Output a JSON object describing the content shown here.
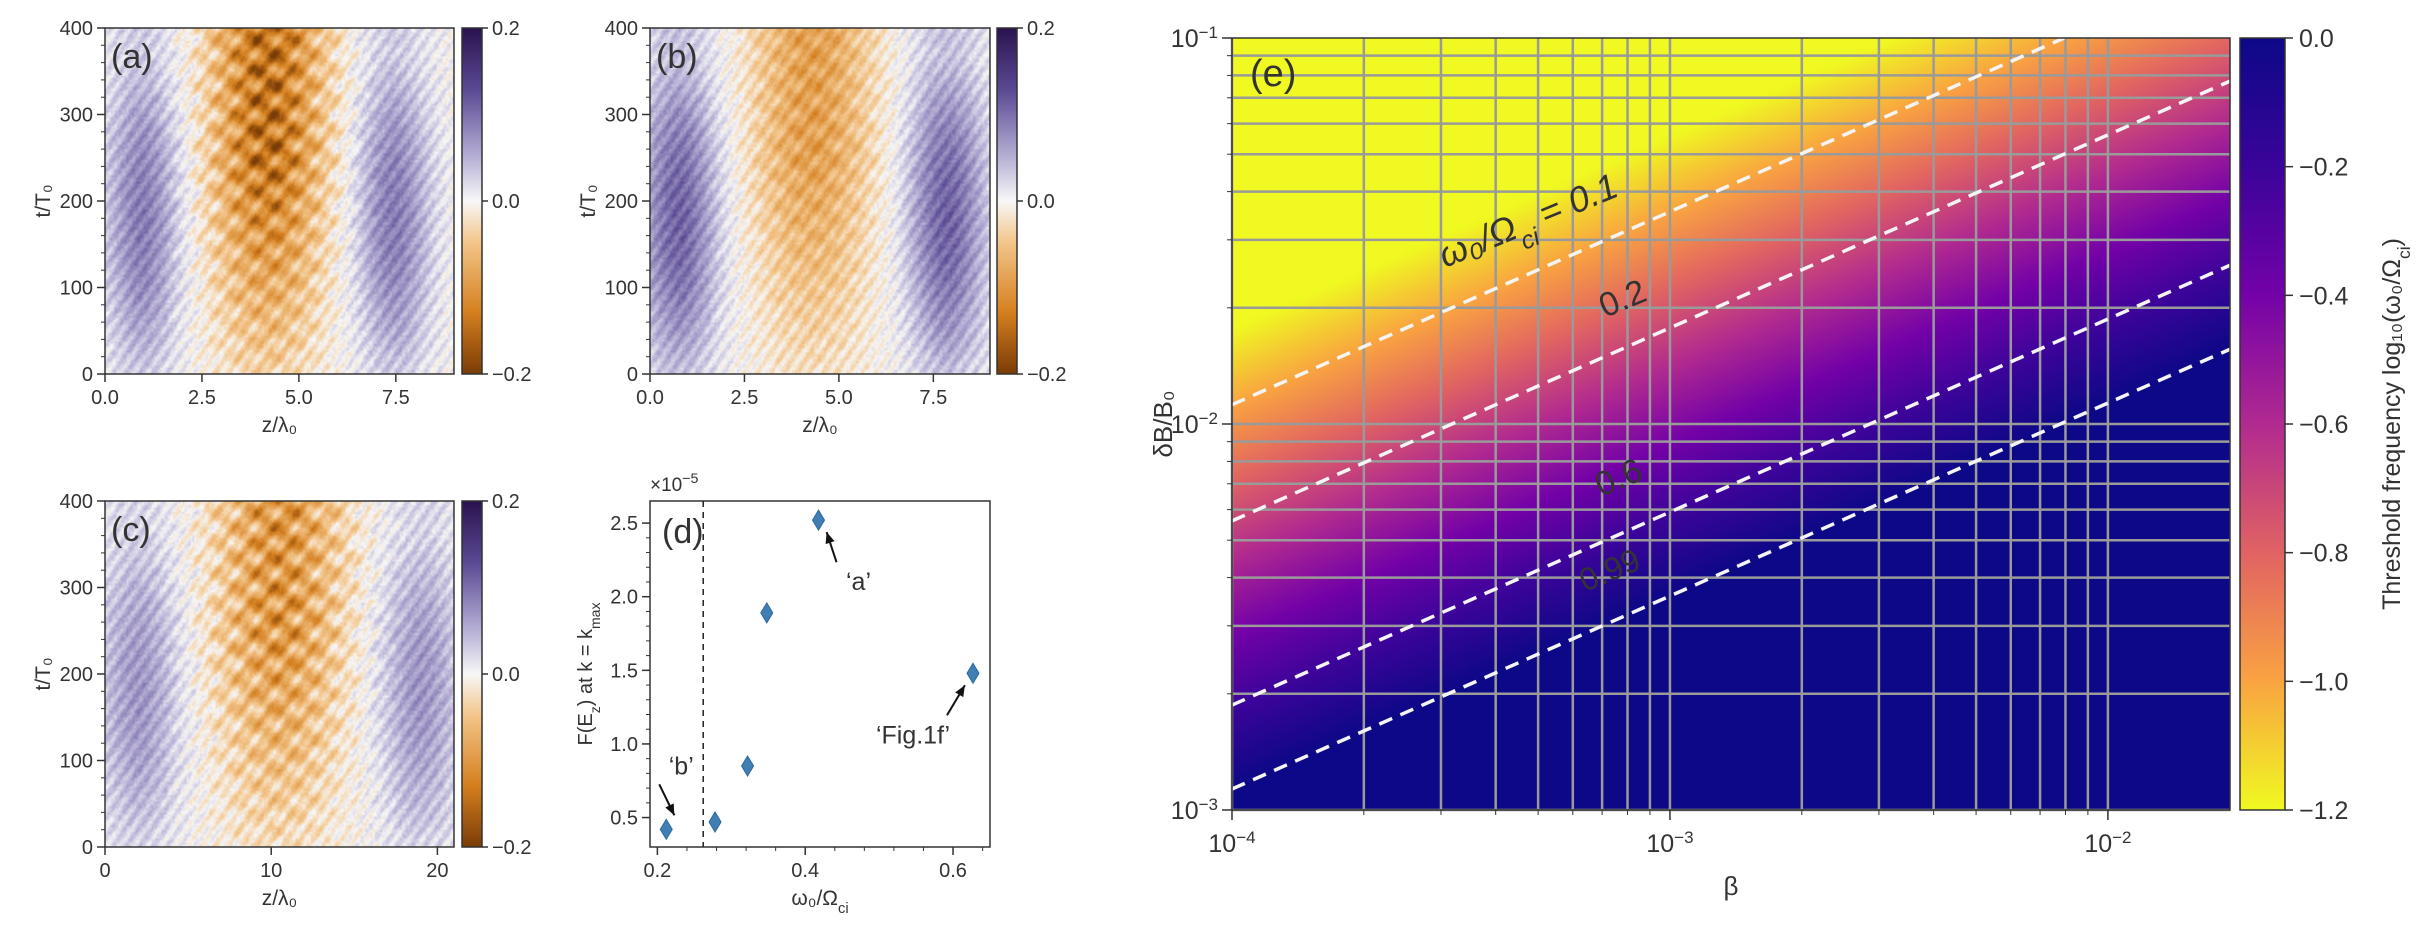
{
  "chart_data": [
    {
      "panel": "a",
      "type": "heatmap",
      "label": "(a)",
      "xlabel": "z/λ₀",
      "ylabel": "t/T₀",
      "xlim": [
        0,
        9
      ],
      "ylim": [
        0,
        400
      ],
      "xticks": [
        "0.0",
        "2.5",
        "5.0",
        "7.5"
      ],
      "xtick_values": [
        0,
        2.5,
        5,
        7.5
      ],
      "yticks": [
        "0",
        "100",
        "200",
        "300",
        "400"
      ],
      "ytick_values": [
        0,
        100,
        200,
        300,
        400
      ],
      "colorbar": {
        "ticks": [
          "0.2",
          "0.0",
          "−0.2"
        ],
        "tick_values": [
          0.2,
          0,
          -0.2
        ],
        "range": [
          -0.2,
          0.2
        ]
      },
      "pattern": {
        "center": 4.2,
        "width": 2.1,
        "depth": 0.7,
        "stripes": 1.0,
        "side_purple": 0.45
      }
    },
    {
      "panel": "b",
      "type": "heatmap",
      "label": "(b)",
      "xlabel": "z/λ₀",
      "ylabel": "t/T₀",
      "xlim": [
        0,
        9
      ],
      "ylim": [
        0,
        400
      ],
      "xticks": [
        "0.0",
        "2.5",
        "5.0",
        "7.5"
      ],
      "xtick_values": [
        0,
        2.5,
        5,
        7.5
      ],
      "yticks": [
        "0",
        "100",
        "200",
        "300",
        "400"
      ],
      "ytick_values": [
        0,
        100,
        200,
        300,
        400
      ],
      "colorbar": {
        "ticks": [
          "0.2",
          "0.0",
          "−0.2"
        ],
        "tick_values": [
          0.2,
          0,
          -0.2
        ],
        "range": [
          -0.2,
          0.2
        ]
      },
      "pattern": {
        "center": 4.3,
        "width": 2.3,
        "depth": 0.45,
        "stripes": 0.35,
        "side_purple": 0.55
      }
    },
    {
      "panel": "c",
      "type": "heatmap",
      "label": "(c)",
      "xlabel": "z/λ₀",
      "ylabel": "t/T₀",
      "xlim": [
        0,
        21
      ],
      "ylim": [
        0,
        400
      ],
      "xticks": [
        "0",
        "10",
        "20"
      ],
      "xtick_values": [
        0,
        10,
        20
      ],
      "yticks": [
        "0",
        "100",
        "200",
        "300",
        "400"
      ],
      "ytick_values": [
        0,
        100,
        200,
        300,
        400
      ],
      "colorbar": {
        "ticks": [
          "0.2",
          "0.0",
          "−0.2"
        ],
        "tick_values": [
          0.2,
          0,
          -0.2
        ],
        "range": [
          -0.2,
          0.2
        ]
      },
      "pattern": {
        "center": 10.5,
        "width": 5.5,
        "depth": 0.5,
        "stripes": 0.9,
        "side_purple": 0.35
      }
    },
    {
      "panel": "d",
      "type": "scatter",
      "label": "(d)",
      "xlabel": "ω₀/Ω",
      "xlabel_sub": "ci",
      "ylabel": "F(E",
      "ylabel_sub": "z",
      "ylabel_mid": ") at k = k",
      "ylabel_sub2": "max",
      "y_multiplier": "×10",
      "y_multiplier_exp": "−5",
      "xlim": [
        0.19,
        0.65
      ],
      "ylim": [
        0.3,
        2.65
      ],
      "xticks": [
        "0.2",
        "0.4",
        "0.6"
      ],
      "xtick_values": [
        0.2,
        0.4,
        0.6
      ],
      "yticks": [
        "0.5",
        "1.0",
        "1.5",
        "2.0",
        "2.5"
      ],
      "ytick_values": [
        0.5,
        1.0,
        1.5,
        2.0,
        2.5
      ],
      "vline": 0.262,
      "x": [
        0.212,
        0.278,
        0.322,
        0.348,
        0.418,
        0.627
      ],
      "y": [
        0.42,
        0.47,
        0.85,
        1.89,
        2.52,
        1.48
      ],
      "annotations": [
        {
          "text": "‘a’",
          "point": 4
        },
        {
          "text": "‘Fig.1f’",
          "point": 5
        },
        {
          "text": "‘b’",
          "point": 0
        }
      ]
    },
    {
      "panel": "e",
      "type": "heatmap",
      "label": "(e)",
      "xlabel": "β",
      "ylabel": "δB/B₀",
      "xscale": "log",
      "yscale": "log",
      "xlim": [
        0.0001,
        0.019
      ],
      "ylim": [
        0.001,
        0.1
      ],
      "xticks": [
        "10",
        "10",
        "10"
      ],
      "xtick_exps": [
        "−4",
        "−3",
        "−2"
      ],
      "xtick_values": [
        0.0001,
        0.001,
        0.01
      ],
      "yticks": [
        "10",
        "10",
        "10"
      ],
      "ytick_exps": [
        "−3",
        "−2",
        "−1"
      ],
      "ytick_values": [
        0.001,
        0.01,
        0.1
      ],
      "contour_labels": [
        "ω₀/Ω",
        "= 0.1",
        "0.2",
        "0.6",
        "0.99"
      ],
      "contour_sub": "ci",
      "contour_levels": [
        0.1,
        0.2,
        0.6,
        0.99
      ],
      "colorbar": {
        "label": "Threshold frequency log₁₀(ω₀/Ω",
        "label_sub": "ci",
        "label_end": ")",
        "ticks": [
          "0.0",
          "−0.2",
          "−0.4",
          "−0.6",
          "−0.8",
          "−1.0",
          "−1.2"
        ],
        "tick_values": [
          0,
          -0.2,
          -0.4,
          -0.6,
          -0.8,
          -1.0,
          -1.2
        ],
        "range": [
          -1.2,
          0
        ]
      }
    }
  ]
}
